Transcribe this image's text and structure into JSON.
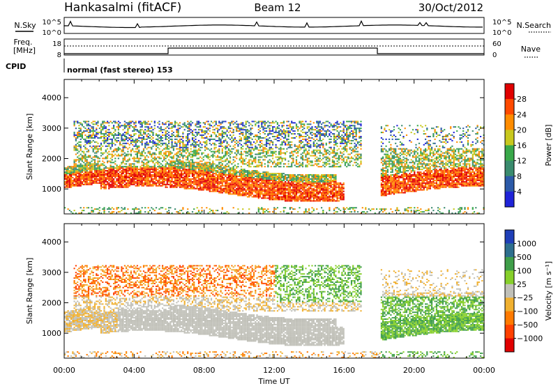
{
  "header": {
    "station": "Hankasalmi (fitACF)",
    "beam": "Beam 12",
    "date": "30/Oct/2012"
  },
  "sky_panel": {
    "left_label": "N.Sky",
    "right_label": "N.Search",
    "left_ticks": [
      "10^5",
      "10^0"
    ],
    "right_ticks": [
      "10^5",
      "10^0"
    ]
  },
  "freq_panel": {
    "left_label_1": "Freq.",
    "left_label_2": "[MHz]",
    "right_label": "Nave",
    "left_ticks": [
      "18",
      "8"
    ],
    "right_ticks": [
      "60",
      "0"
    ]
  },
  "cpid": {
    "label": "CPID",
    "value": "normal (fast stereo) 153"
  },
  "chart_data": [
    {
      "type": "heatmap",
      "name": "power",
      "ylabel": "Slant Range [km]",
      "yticks": [
        "1000",
        "2000",
        "3000",
        "4000"
      ],
      "ylim": [
        180,
        4600
      ],
      "colorbar_label": "Power [dB]",
      "colorbar_ticks": [
        "4",
        "8",
        "12",
        "16",
        "20",
        "24",
        "28"
      ],
      "colors": [
        "#1f23d8",
        "#2c5aa8",
        "#3a8b6e",
        "#39a84a",
        "#c8c81e",
        "#ff8c00",
        "#ff4a00",
        "#e00000"
      ]
    },
    {
      "type": "heatmap",
      "name": "velocity",
      "ylabel": "Slant Range [km]",
      "yticks": [
        "1000",
        "2000",
        "3000",
        "4000"
      ],
      "ylim": [
        180,
        4600
      ],
      "colorbar_label": "Velocity [m s⁻¹]",
      "colorbar_ticks": [
        "1000",
        "500",
        "100",
        "25",
        "−25",
        "−100",
        "−500",
        "−1000"
      ],
      "colors": [
        "#1f3fb8",
        "#2e6f8e",
        "#3f9e49",
        "#86cf2a",
        "#c0c0b8",
        "#f0b030",
        "#ff7a00",
        "#ff4000",
        "#e00000"
      ]
    }
  ],
  "xaxis": {
    "label": "Time UT",
    "ticks": [
      "00:00",
      "04:00",
      "08:00",
      "12:00",
      "16:00",
      "20:00",
      "00:00"
    ]
  }
}
